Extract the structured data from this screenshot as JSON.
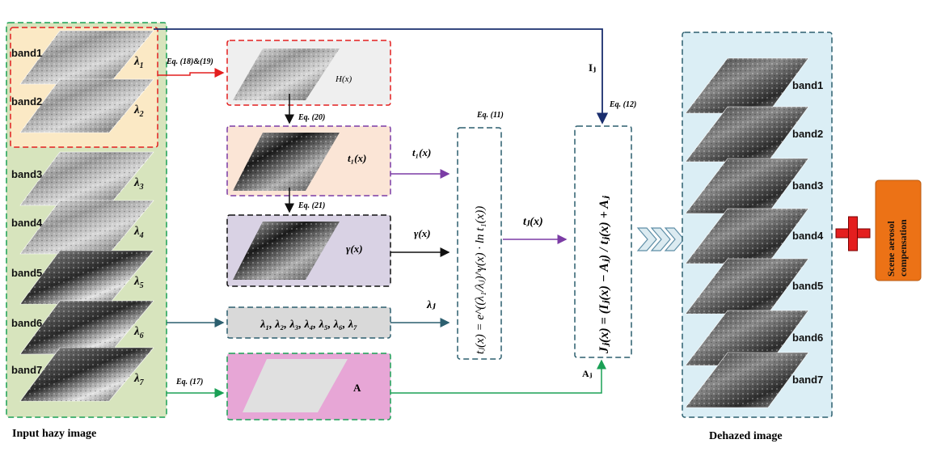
{
  "input": {
    "caption": "Input hazy image",
    "bands": [
      {
        "label": "band1",
        "lambda": "λ",
        "sub": "1"
      },
      {
        "label": "band2",
        "lambda": "λ",
        "sub": "2"
      },
      {
        "label": "band3",
        "lambda": "λ",
        "sub": "3"
      },
      {
        "label": "band4",
        "lambda": "λ",
        "sub": "4"
      },
      {
        "label": "band5",
        "lambda": "λ",
        "sub": "5"
      },
      {
        "label": "band6",
        "lambda": "λ",
        "sub": "6"
      },
      {
        "label": "band7",
        "lambda": "λ",
        "sub": "7"
      }
    ]
  },
  "eq": {
    "e18_19": "Eq. (18)&(19)",
    "e20": "Eq. (20)",
    "e21": "Eq. (21)",
    "e17": "Eq. (17)",
    "e11": "Eq. (11)",
    "e12": "Eq. (12)"
  },
  "middle": {
    "hx": "H(x)",
    "t1x": "t₁(x)",
    "gammax": "γ(x)",
    "lambda_list": "λ₁, λ₂, λ₃, λ₄, λ₅, λ₆, λ₇",
    "A": "A"
  },
  "arrows": {
    "t1x": "t₁(x)",
    "gammax": "γ(x)",
    "lambdaj": "λⱼ",
    "tjx": "tⱼ(x)",
    "Ij": "Iⱼ",
    "Aj": "Aⱼ"
  },
  "formulas": {
    "tj": "tⱼ(x) = e^((λ₁/λⱼ)^γ(x) · ln t₁(x))",
    "jj": "Jⱼ(x) = (Iⱼ(x) − Aⱼ) / tⱼ(x) + Aⱼ"
  },
  "output": {
    "caption": "Dehazed image",
    "bands": [
      "band1",
      "band2",
      "band3",
      "band4",
      "band5",
      "band6",
      "band7"
    ]
  },
  "compensation": {
    "line1": "Scene aerosol",
    "line2": "compensation"
  },
  "colors": {
    "red": "#e41e1e",
    "purple": "#7b3ca5",
    "teal": "#2c5f6f",
    "green": "#1aa055",
    "navy": "#1a2e6e",
    "orange": "#ec7216"
  }
}
